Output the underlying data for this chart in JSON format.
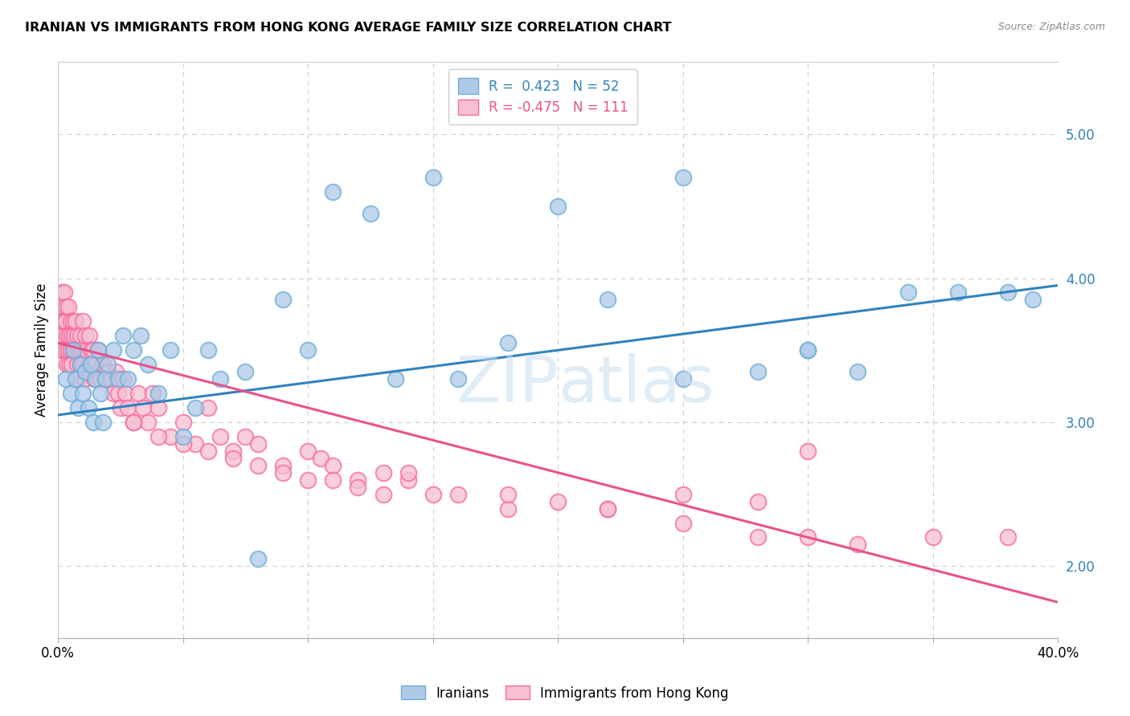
{
  "title": "IRANIAN VS IMMIGRANTS FROM HONG KONG AVERAGE FAMILY SIZE CORRELATION CHART",
  "source": "Source: ZipAtlas.com",
  "ylabel": "Average Family Size",
  "right_yticks": [
    2.0,
    3.0,
    4.0,
    5.0
  ],
  "watermark": "ZIPatlas",
  "legend_iranians_R": " 0.423",
  "legend_iranians_N": "52",
  "legend_hk_R": "-0.475",
  "legend_hk_N": "111",
  "blue_fill": "#aec9e8",
  "blue_edge": "#6baed6",
  "pink_fill": "#f7c0d0",
  "pink_edge": "#f768a1",
  "blue_line_color": "#3182bd",
  "pink_line_color": "#e8528c",
  "iranian_x": [
    0.3,
    0.5,
    0.6,
    0.7,
    0.8,
    0.9,
    1.0,
    1.1,
    1.2,
    1.3,
    1.4,
    1.5,
    1.6,
    1.7,
    1.8,
    1.9,
    2.0,
    2.2,
    2.4,
    2.6,
    2.8,
    3.0,
    3.3,
    3.6,
    4.0,
    4.5,
    5.0,
    5.5,
    6.0,
    6.5,
    7.5,
    8.0,
    9.0,
    10.0,
    11.0,
    12.5,
    13.5,
    15.0,
    16.0,
    18.0,
    20.0,
    22.0,
    25.0,
    28.0,
    30.0,
    32.0,
    34.0,
    36.0,
    38.0,
    39.0,
    25.0,
    30.0
  ],
  "iranian_y": [
    3.3,
    3.2,
    3.5,
    3.3,
    3.1,
    3.4,
    3.2,
    3.35,
    3.1,
    3.4,
    3.0,
    3.3,
    3.5,
    3.2,
    3.0,
    3.3,
    3.4,
    3.5,
    3.3,
    3.6,
    3.3,
    3.5,
    3.6,
    3.4,
    3.2,
    3.5,
    2.9,
    3.1,
    3.5,
    3.3,
    3.35,
    2.05,
    3.85,
    3.5,
    4.6,
    4.45,
    3.3,
    4.7,
    3.3,
    3.55,
    4.5,
    3.85,
    3.3,
    3.35,
    3.5,
    3.35,
    3.9,
    3.9,
    3.9,
    3.85,
    4.7,
    3.5
  ],
  "hk_x": [
    0.05,
    0.1,
    0.1,
    0.15,
    0.15,
    0.2,
    0.2,
    0.2,
    0.25,
    0.25,
    0.3,
    0.3,
    0.3,
    0.35,
    0.35,
    0.4,
    0.4,
    0.45,
    0.45,
    0.5,
    0.5,
    0.55,
    0.55,
    0.6,
    0.6,
    0.65,
    0.7,
    0.7,
    0.75,
    0.75,
    0.8,
    0.8,
    0.85,
    0.9,
    0.9,
    0.95,
    1.0,
    1.0,
    1.0,
    1.05,
    1.1,
    1.15,
    1.2,
    1.25,
    1.3,
    1.35,
    1.4,
    1.45,
    1.5,
    1.6,
    1.7,
    1.8,
    1.9,
    2.0,
    2.1,
    2.2,
    2.3,
    2.4,
    2.5,
    2.6,
    2.7,
    2.8,
    3.0,
    3.2,
    3.4,
    3.6,
    3.8,
    4.0,
    4.5,
    5.0,
    5.5,
    6.0,
    6.5,
    7.0,
    7.5,
    8.0,
    9.0,
    10.0,
    10.5,
    11.0,
    12.0,
    13.0,
    14.0,
    15.0,
    16.0,
    18.0,
    20.0,
    22.0,
    25.0,
    28.0,
    30.0,
    32.0,
    35.0,
    38.0,
    30.0,
    14.0,
    18.0,
    22.0,
    25.0,
    28.0,
    3.0,
    4.0,
    5.0,
    6.0,
    7.0,
    8.0,
    9.0,
    10.0,
    11.0,
    12.0,
    13.0
  ],
  "hk_y": [
    3.5,
    3.6,
    3.8,
    3.7,
    3.9,
    3.6,
    3.8,
    3.5,
    3.7,
    3.9,
    3.5,
    3.7,
    3.8,
    3.6,
    3.4,
    3.8,
    3.5,
    3.6,
    3.4,
    3.7,
    3.5,
    3.6,
    3.4,
    3.5,
    3.7,
    3.6,
    3.5,
    3.7,
    3.4,
    3.6,
    3.5,
    3.3,
    3.5,
    3.6,
    3.4,
    3.5,
    3.5,
    3.7,
    3.4,
    3.3,
    3.6,
    3.5,
    3.4,
    3.6,
    3.5,
    3.4,
    3.5,
    3.3,
    3.4,
    3.5,
    3.3,
    3.4,
    3.3,
    3.35,
    3.3,
    3.2,
    3.35,
    3.2,
    3.1,
    3.3,
    3.2,
    3.1,
    3.0,
    3.2,
    3.1,
    3.0,
    3.2,
    3.1,
    2.9,
    3.0,
    2.85,
    3.1,
    2.9,
    2.8,
    2.9,
    2.85,
    2.7,
    2.8,
    2.75,
    2.7,
    2.6,
    2.65,
    2.6,
    2.5,
    2.5,
    2.4,
    2.45,
    2.4,
    2.5,
    2.45,
    2.2,
    2.15,
    2.2,
    2.2,
    2.8,
    2.65,
    2.5,
    2.4,
    2.3,
    2.2,
    3.0,
    2.9,
    2.85,
    2.8,
    2.75,
    2.7,
    2.65,
    2.6,
    2.6,
    2.55,
    2.5
  ],
  "xmin": 0.0,
  "xmax": 40.0,
  "ymin": 1.5,
  "ymax": 5.5,
  "iran_line_x0": 0.0,
  "iran_line_y0": 3.05,
  "iran_line_x1": 40.0,
  "iran_line_y1": 3.95,
  "hk_line_x0": 0.0,
  "hk_line_y0": 3.55,
  "hk_line_x1": 40.0,
  "hk_line_y1": 1.75,
  "background_color": "#ffffff",
  "grid_color": "#cccccc"
}
